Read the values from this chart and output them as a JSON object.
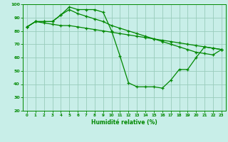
{
  "title": "",
  "xlabel": "Humidité relative (%)",
  "ylabel": "",
  "xlim": [
    -0.5,
    23.5
  ],
  "ylim": [
    20,
    100
  ],
  "yticks": [
    20,
    30,
    40,
    50,
    60,
    70,
    80,
    90,
    100
  ],
  "xticks": [
    0,
    1,
    2,
    3,
    4,
    5,
    6,
    7,
    8,
    9,
    10,
    11,
    12,
    13,
    14,
    15,
    16,
    17,
    18,
    19,
    20,
    21,
    22,
    23
  ],
  "bg_color": "#c8eee8",
  "grid_color": "#99ccbb",
  "line_color": "#008800",
  "line1_x": [
    0,
    1,
    2,
    3,
    4,
    5,
    6,
    7,
    8,
    9,
    10,
    11,
    12,
    13,
    14,
    15,
    16,
    17,
    18,
    19,
    20,
    21,
    22,
    23
  ],
  "line1_y": [
    83,
    87,
    87,
    87,
    92,
    98,
    96,
    96,
    96,
    94,
    80,
    61,
    41,
    38,
    38,
    38,
    37,
    43,
    51,
    51,
    60,
    68,
    67,
    66
  ],
  "line2_x": [
    0,
    1,
    2,
    3,
    4,
    5,
    6,
    7,
    8,
    9,
    10,
    11,
    12,
    13,
    14,
    15,
    16,
    17,
    18,
    19,
    20,
    21,
    22,
    23
  ],
  "line2_y": [
    83,
    87,
    86,
    85,
    84,
    84,
    83,
    82,
    81,
    80,
    79,
    78,
    77,
    76,
    75,
    74,
    73,
    72,
    71,
    70,
    69,
    68,
    67,
    66
  ],
  "line3_x": [
    0,
    1,
    2,
    3,
    4,
    5,
    6,
    7,
    8,
    9,
    10,
    11,
    12,
    13,
    14,
    15,
    16,
    17,
    18,
    19,
    20,
    21,
    22,
    23
  ],
  "line3_y": [
    83,
    87,
    87,
    87,
    92,
    96,
    93,
    91,
    89,
    87,
    84,
    82,
    80,
    78,
    76,
    74,
    72,
    70,
    68,
    66,
    64,
    63,
    62,
    66
  ]
}
